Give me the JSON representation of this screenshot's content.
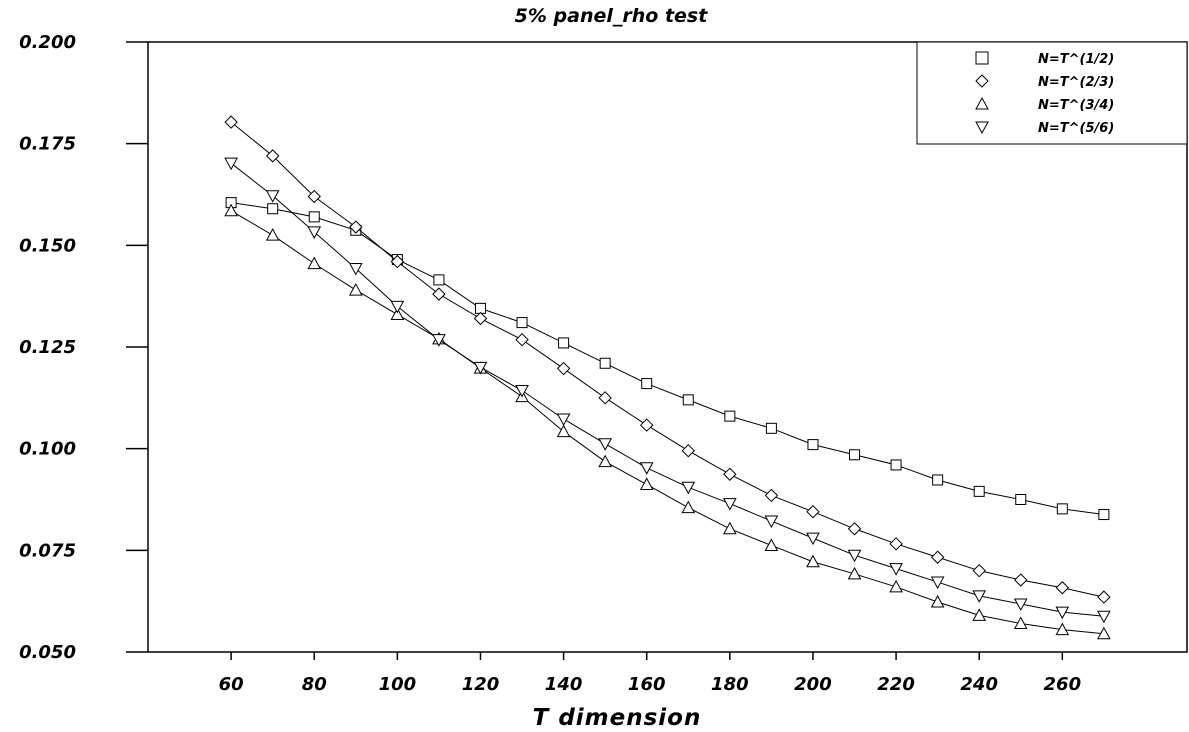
{
  "chart_data": {
    "type": "line",
    "title": "5% panel_rho test",
    "xlabel": "T dimension",
    "ylabel": "",
    "xlim": [
      40,
      290
    ],
    "ylim": [
      0.05,
      0.2
    ],
    "xticks": [
      60,
      80,
      100,
      120,
      140,
      160,
      180,
      200,
      220,
      240,
      260
    ],
    "xtick_labels": [
      "60",
      "80",
      "100",
      "120",
      "140",
      "160",
      "180",
      "200",
      "220",
      "240",
      "260"
    ],
    "yticks": [
      0.05,
      0.075,
      0.1,
      0.125,
      0.15,
      0.175,
      0.2
    ],
    "ytick_labels": [
      "0.050",
      "0.075",
      "0.100",
      "0.125",
      "0.150",
      "0.175",
      "0.200"
    ],
    "grid": false,
    "legend_position": "top-right",
    "x": [
      60,
      70,
      80,
      90,
      100,
      110,
      120,
      130,
      140,
      150,
      160,
      170,
      180,
      190,
      200,
      210,
      220,
      230,
      240,
      250,
      260,
      270
    ],
    "series": [
      {
        "name": "N=T^(1/2)",
        "marker": "square",
        "values": [
          0.1605,
          0.159,
          0.157,
          0.1537,
          0.1465,
          0.1415,
          0.1345,
          0.131,
          0.126,
          0.121,
          0.116,
          0.112,
          0.108,
          0.105,
          0.101,
          0.0985,
          0.096,
          0.0923,
          0.0895,
          0.0875,
          0.0852,
          0.0838
        ]
      },
      {
        "name": "N=T^(2/3)",
        "marker": "diamond",
        "values": [
          0.1803,
          0.172,
          0.162,
          0.1545,
          0.146,
          0.138,
          0.132,
          0.1268,
          0.1197,
          0.1125,
          0.1058,
          0.0995,
          0.0937,
          0.0885,
          0.0845,
          0.0803,
          0.0766,
          0.0733,
          0.07,
          0.0677,
          0.0658,
          0.0635
        ]
      },
      {
        "name": "N=T^(3/4)",
        "marker": "triangle-up",
        "values": [
          0.1585,
          0.1525,
          0.1455,
          0.139,
          0.133,
          0.127,
          0.1198,
          0.1128,
          0.1042,
          0.0968,
          0.0912,
          0.0855,
          0.0803,
          0.0762,
          0.0722,
          0.0692,
          0.066,
          0.0623,
          0.059,
          0.057,
          0.0555,
          0.0545
        ]
      },
      {
        "name": "N=T^(5/6)",
        "marker": "triangle-down",
        "values": [
          0.1702,
          0.1622,
          0.1533,
          0.1443,
          0.135,
          0.1268,
          0.12,
          0.1143,
          0.1073,
          0.1012,
          0.0953,
          0.0905,
          0.0865,
          0.0822,
          0.078,
          0.0738,
          0.0705,
          0.0672,
          0.0638,
          0.0618,
          0.0598,
          0.0588
        ]
      }
    ]
  }
}
